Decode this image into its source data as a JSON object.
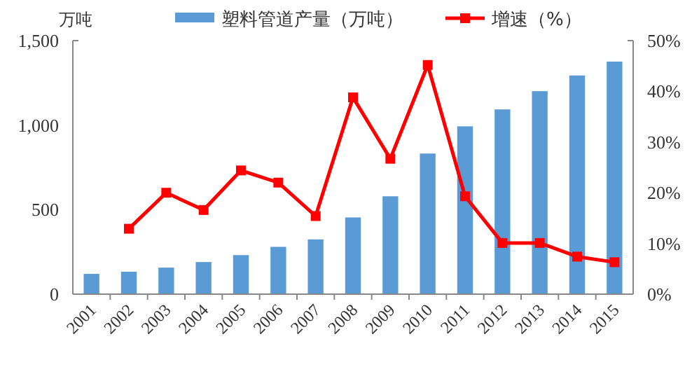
{
  "chart_data": {
    "type": "bar",
    "ylabel": "万吨",
    "legend": "top",
    "categories": [
      "2001",
      "2002",
      "2003",
      "2004",
      "2005",
      "2006",
      "2007",
      "2008",
      "2009",
      "2010",
      "2011",
      "2012",
      "2013",
      "2014",
      "2015"
    ],
    "ylim": [
      0,
      1500
    ],
    "yticks": [
      0,
      {
        "value": 500,
        "label": "500"
      },
      {
        "value": 1000,
        "label": "1,000"
      },
      {
        "value": 1500,
        "label": "1,500"
      }
    ],
    "y2lim": [
      0,
      50
    ],
    "y2ticks": [
      {
        "value": 0,
        "label": "0%"
      },
      {
        "value": 10,
        "label": "10%"
      },
      {
        "value": 20,
        "label": "20%"
      },
      {
        "value": 30,
        "label": "30%"
      },
      {
        "value": 40,
        "label": "40%"
      },
      {
        "value": 50,
        "label": "50%"
      }
    ],
    "grid": false,
    "series": [
      {
        "name": "塑料管道产量（万吨）",
        "type": "bar",
        "color": "#5b9bd5",
        "values": [
          120,
          133,
          157,
          190,
          231,
          280,
          324,
          454,
          579,
          832,
          993,
          1093,
          1201,
          1294,
          1376
        ]
      },
      {
        "name": "增速（%）",
        "type": "line",
        "axis": "y2",
        "color": "#ff0000",
        "marker": "square",
        "line_style": "solid",
        "values": [
          null,
          12.9,
          20.0,
          16.6,
          24.4,
          22.0,
          15.4,
          38.8,
          26.7,
          45.2,
          19.3,
          10.1,
          10.1,
          7.4,
          6.3
        ]
      }
    ]
  }
}
